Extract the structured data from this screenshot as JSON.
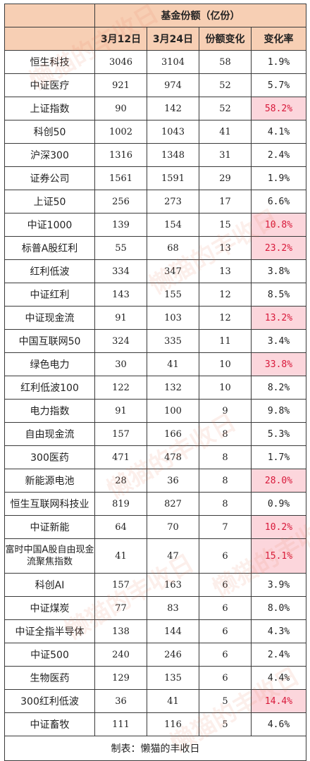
{
  "header": {
    "group_title": "基金份额（亿份）",
    "columns": [
      "3月12日",
      "3月24日",
      "份额变化",
      "变化率"
    ]
  },
  "rows": [
    {
      "name": "恒生科技",
      "mar12": "3046",
      "mar24": "3104",
      "change": "58",
      "rate": "1.9%",
      "hl": false
    },
    {
      "name": "中证医疗",
      "mar12": "921",
      "mar24": "974",
      "change": "52",
      "rate": "5.7%",
      "hl": false
    },
    {
      "name": "上证指数",
      "mar12": "90",
      "mar24": "142",
      "change": "52",
      "rate": "58.2%",
      "hl": true
    },
    {
      "name": "科创50",
      "mar12": "1002",
      "mar24": "1043",
      "change": "41",
      "rate": "4.1%",
      "hl": false
    },
    {
      "name": "沪深300",
      "mar12": "1316",
      "mar24": "1348",
      "change": "31",
      "rate": "2.4%",
      "hl": false
    },
    {
      "name": "证券公司",
      "mar12": "1561",
      "mar24": "1591",
      "change": "29",
      "rate": "1.9%",
      "hl": false
    },
    {
      "name": "上证50",
      "mar12": "256",
      "mar24": "273",
      "change": "17",
      "rate": "6.6%",
      "hl": false
    },
    {
      "name": "中证1000",
      "mar12": "139",
      "mar24": "154",
      "change": "15",
      "rate": "10.8%",
      "hl": true
    },
    {
      "name": "标普A股红利",
      "mar12": "55",
      "mar24": "68",
      "change": "13",
      "rate": "23.2%",
      "hl": true
    },
    {
      "name": "红利低波",
      "mar12": "334",
      "mar24": "347",
      "change": "13",
      "rate": "3.8%",
      "hl": false
    },
    {
      "name": "中证红利",
      "mar12": "143",
      "mar24": "155",
      "change": "12",
      "rate": "8.5%",
      "hl": false
    },
    {
      "name": "中证现金流",
      "mar12": "91",
      "mar24": "103",
      "change": "12",
      "rate": "13.2%",
      "hl": true
    },
    {
      "name": "中国互联网50",
      "mar12": "324",
      "mar24": "335",
      "change": "11",
      "rate": "3.4%",
      "hl": false
    },
    {
      "name": "绿色电力",
      "mar12": "30",
      "mar24": "41",
      "change": "10",
      "rate": "33.8%",
      "hl": true
    },
    {
      "name": "红利低波100",
      "mar12": "122",
      "mar24": "132",
      "change": "10",
      "rate": "8.2%",
      "hl": false
    },
    {
      "name": "电力指数",
      "mar12": "91",
      "mar24": "100",
      "change": "9",
      "rate": "9.8%",
      "hl": false
    },
    {
      "name": "自由现金流",
      "mar12": "157",
      "mar24": "166",
      "change": "8",
      "rate": "5.3%",
      "hl": false
    },
    {
      "name": "300医药",
      "mar12": "471",
      "mar24": "478",
      "change": "8",
      "rate": "1.7%",
      "hl": false
    },
    {
      "name": "新能源电池",
      "mar12": "28",
      "mar24": "36",
      "change": "8",
      "rate": "28.0%",
      "hl": true
    },
    {
      "name": "恒生互联网科技业",
      "mar12": "819",
      "mar24": "827",
      "change": "8",
      "rate": "0.9%",
      "hl": false
    },
    {
      "name": "中证新能",
      "mar12": "64",
      "mar24": "70",
      "change": "7",
      "rate": "10.2%",
      "hl": true
    },
    {
      "name": "富时中国A股自由现金流聚焦指数",
      "mar12": "41",
      "mar24": "47",
      "change": "6",
      "rate": "15.1%",
      "hl": true,
      "tall": true
    },
    {
      "name": "科创AI",
      "mar12": "157",
      "mar24": "163",
      "change": "6",
      "rate": "3.9%",
      "hl": false
    },
    {
      "name": "中证煤炭",
      "mar12": "77",
      "mar24": "83",
      "change": "6",
      "rate": "8.0%",
      "hl": false
    },
    {
      "name": "中证全指半导体",
      "mar12": "138",
      "mar24": "144",
      "change": "6",
      "rate": "4.3%",
      "hl": false
    },
    {
      "name": "中证500",
      "mar12": "240",
      "mar24": "246",
      "change": "6",
      "rate": "2.4%",
      "hl": false
    },
    {
      "name": "生物医药",
      "mar12": "129",
      "mar24": "135",
      "change": "6",
      "rate": "4.4%",
      "hl": false
    },
    {
      "name": "300红利低波",
      "mar12": "36",
      "mar24": "41",
      "change": "5",
      "rate": "14.4%",
      "hl": true
    },
    {
      "name": "中证畜牧",
      "mar12": "111",
      "mar24": "116",
      "change": "5",
      "rate": "4.6%",
      "hl": false
    }
  ],
  "footer": "制表：懒猫的丰收日",
  "watermark": "懒猫的丰收日",
  "colors": {
    "header_bg": "#f7cfb4",
    "highlight_bg": "#fcd6dc",
    "highlight_text": "#d8183a"
  }
}
